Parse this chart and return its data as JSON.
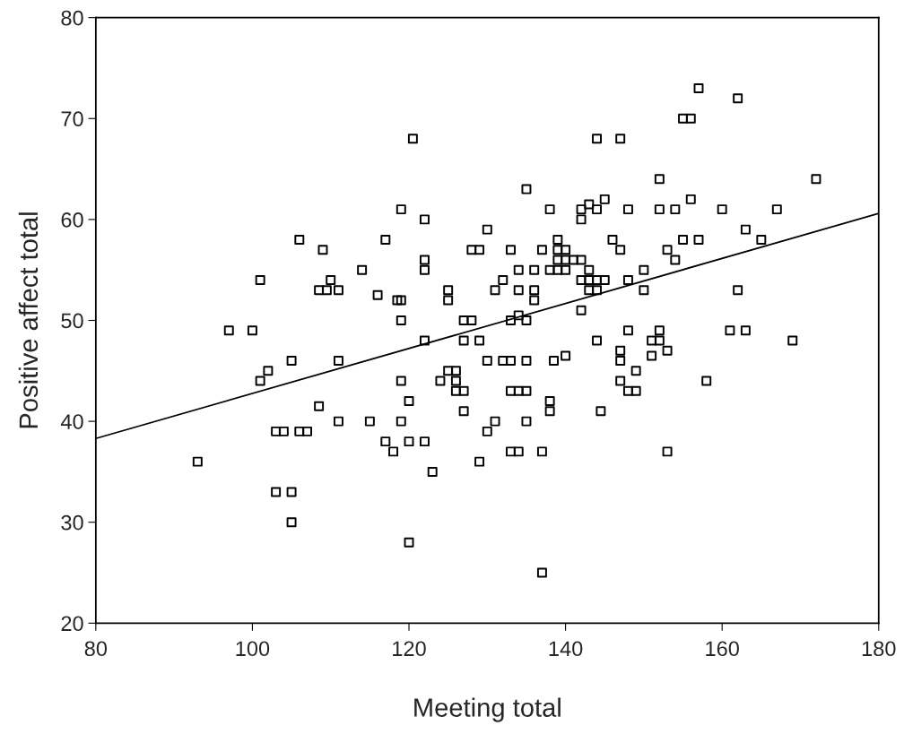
{
  "chart_data": {
    "type": "scatter",
    "xlabel": "Meeting total",
    "ylabel": "Positive affect total",
    "xlim": [
      80,
      180
    ],
    "ylim": [
      20,
      80
    ],
    "xticks": [
      80,
      100,
      120,
      140,
      160,
      180
    ],
    "yticks": [
      20,
      30,
      40,
      50,
      60,
      70,
      80
    ],
    "grid": false,
    "legend": false,
    "series": [
      {
        "type": "scatter",
        "color": "#000000",
        "marker": "square",
        "x": [
          93,
          97,
          100,
          101,
          101,
          102,
          103,
          104,
          103,
          105,
          105,
          105,
          106,
          106,
          107,
          108.5,
          109.5,
          109,
          110,
          111,
          111,
          111,
          108.5,
          114,
          115,
          116,
          117,
          117,
          118,
          118.5,
          119,
          119,
          119,
          119,
          119,
          120,
          120,
          120,
          120.5,
          122,
          122,
          122,
          122,
          122,
          123,
          124,
          125,
          125,
          125,
          126,
          126,
          126,
          127,
          127,
          127,
          127,
          128,
          128,
          129,
          129,
          129,
          130,
          130,
          130,
          131,
          131,
          132,
          132,
          133,
          133,
          133,
          133,
          133,
          134,
          134,
          134,
          134,
          134,
          135,
          135,
          135,
          135,
          135,
          136,
          136,
          136,
          137,
          137,
          137,
          138,
          138,
          138,
          138,
          138.5,
          139,
          139,
          139,
          139,
          140,
          140,
          140,
          140,
          141,
          142,
          142,
          142,
          142,
          142,
          143,
          143,
          143,
          143,
          144,
          144,
          144,
          144,
          144,
          144.5,
          145,
          145,
          146,
          147,
          147,
          147,
          147,
          147,
          148,
          148,
          148,
          148,
          149,
          149,
          150,
          150,
          151,
          151,
          152,
          152,
          152,
          152,
          153,
          153,
          153,
          154,
          154,
          155,
          155,
          156,
          156,
          157,
          157,
          158,
          160,
          161,
          162,
          162,
          163,
          163,
          165,
          167,
          169,
          172
        ],
        "values": [
          36,
          49,
          49,
          54,
          44,
          45,
          39,
          39,
          33,
          33,
          30,
          46,
          58,
          39,
          39,
          53,
          53,
          57,
          54,
          53,
          46,
          40,
          41.5,
          55,
          40,
          52.5,
          58,
          38,
          37,
          52,
          52,
          61,
          50,
          44,
          40,
          42,
          38,
          28,
          68,
          60,
          56,
          55,
          48,
          38,
          35,
          44,
          53,
          52,
          45,
          45,
          44,
          43,
          43,
          41,
          48,
          50,
          50,
          57,
          57,
          48,
          36,
          59,
          46,
          39,
          53,
          40,
          54,
          46,
          46,
          57,
          50,
          43,
          37,
          37,
          43,
          55,
          53,
          50.5,
          63,
          50,
          46,
          43,
          40,
          53,
          52,
          55,
          57,
          37,
          25,
          61,
          55,
          42,
          41,
          46,
          58,
          57,
          56,
          55,
          57,
          56,
          55,
          46.5,
          56,
          61,
          60,
          54,
          51,
          56,
          61.5,
          55,
          54,
          53,
          68,
          61,
          54,
          53,
          48,
          41,
          62,
          54,
          58,
          57,
          68,
          47,
          46,
          44,
          61,
          54,
          49,
          43,
          43,
          45,
          55,
          53,
          46.5,
          48,
          64,
          61,
          49,
          48,
          57,
          47,
          37,
          56,
          61,
          58,
          70,
          70,
          62,
          73,
          58,
          44,
          61,
          49,
          72,
          53,
          59,
          49,
          58,
          61,
          48,
          64
        ]
      },
      {
        "type": "line",
        "color": "#000000",
        "x": [
          80,
          180
        ],
        "values": [
          38.3,
          60.6
        ]
      }
    ]
  }
}
